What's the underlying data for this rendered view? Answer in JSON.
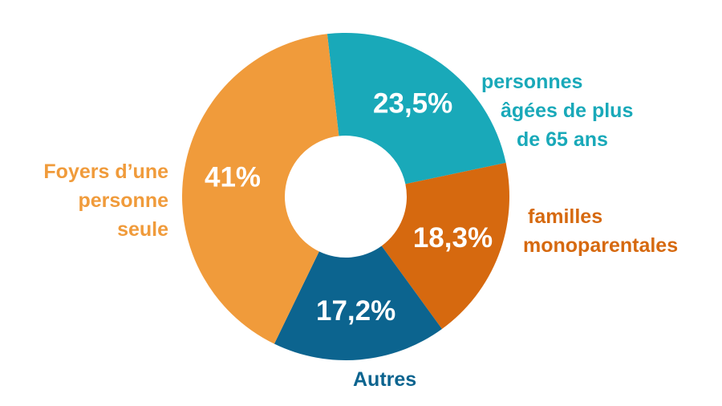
{
  "chart_data": {
    "type": "pie",
    "donut": true,
    "slices": [
      {
        "key": "personnes",
        "lines": [
          "personnes",
          "âgées de plus",
          "de 65 ans"
        ],
        "value": 23.5,
        "label": "23,5%",
        "color": "#19a9b9"
      },
      {
        "key": "familles",
        "lines": [
          "familles",
          "monoparentales"
        ],
        "value": 18.3,
        "label": "18,3%",
        "color": "#d6690f"
      },
      {
        "key": "autres",
        "lines": [
          "Autres"
        ],
        "value": 17.2,
        "label": "17,2%",
        "color": "#0c648f"
      },
      {
        "key": "foyers",
        "lines": [
          "Foyers d’une",
          "personne",
          "seule"
        ],
        "value": 41,
        "label": "41%",
        "color": "#f09b3b"
      }
    ]
  }
}
